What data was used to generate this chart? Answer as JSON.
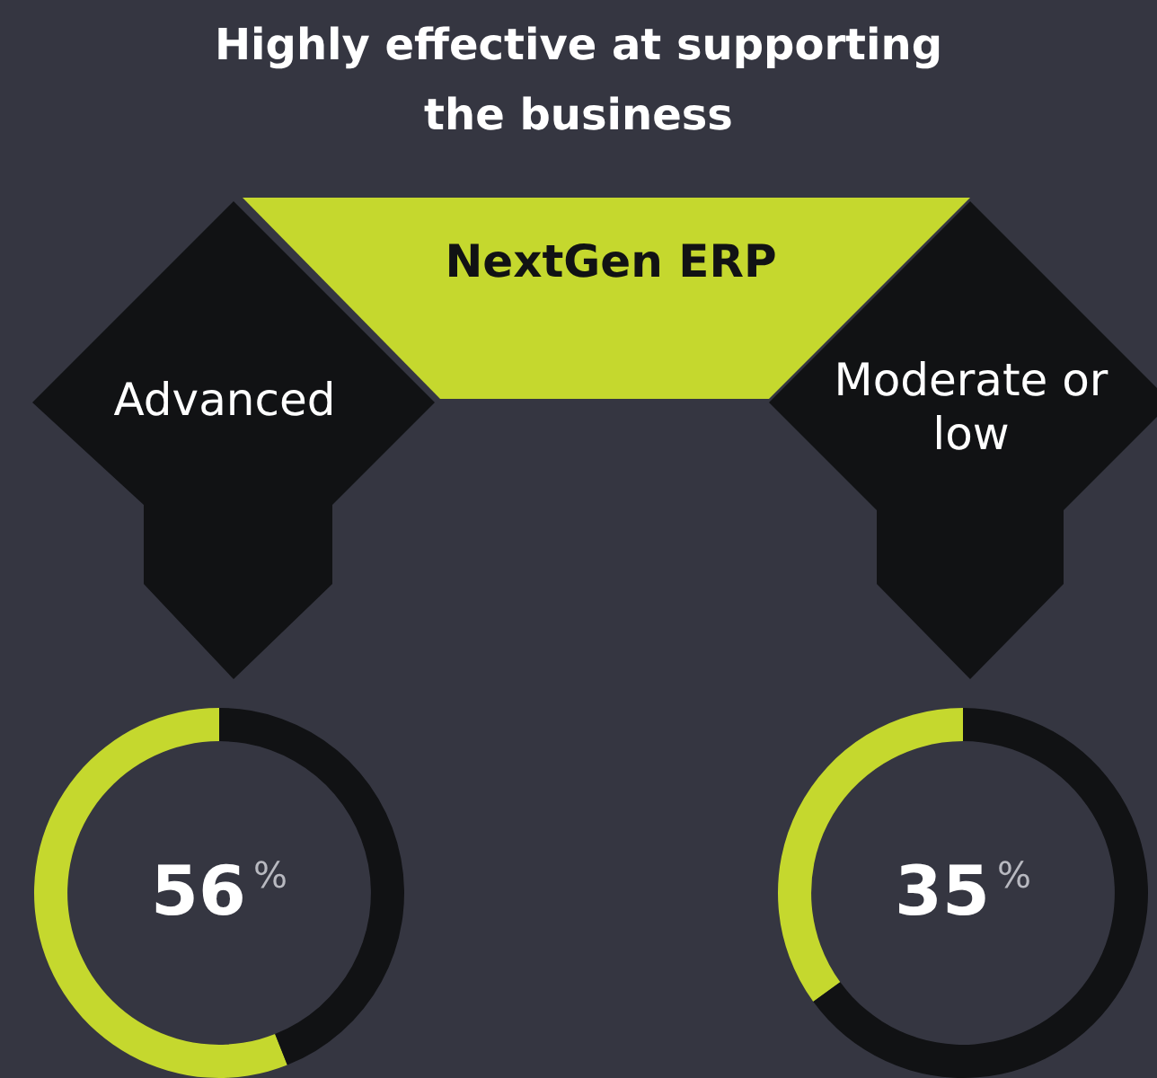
{
  "chart_data": [
    {
      "type": "other",
      "title": "Highly effective at supporting the business",
      "annotations": [
        "NextGen ERP"
      ]
    },
    {
      "type": "donut",
      "title": "Advanced",
      "categories": [
        null,
        null
      ],
      "values": [
        56,
        44
      ],
      "colors": [
        "#c5d82e",
        "#111214"
      ],
      "value_labels": [
        "56%",
        null
      ]
    },
    {
      "type": "donut",
      "title": "Moderate or low",
      "categories": [
        null,
        null
      ],
      "values": [
        35,
        65
      ],
      "colors": [
        "#c5d82e",
        "#111214"
      ],
      "value_labels": [
        "35%",
        null
      ]
    }
  ]
}
